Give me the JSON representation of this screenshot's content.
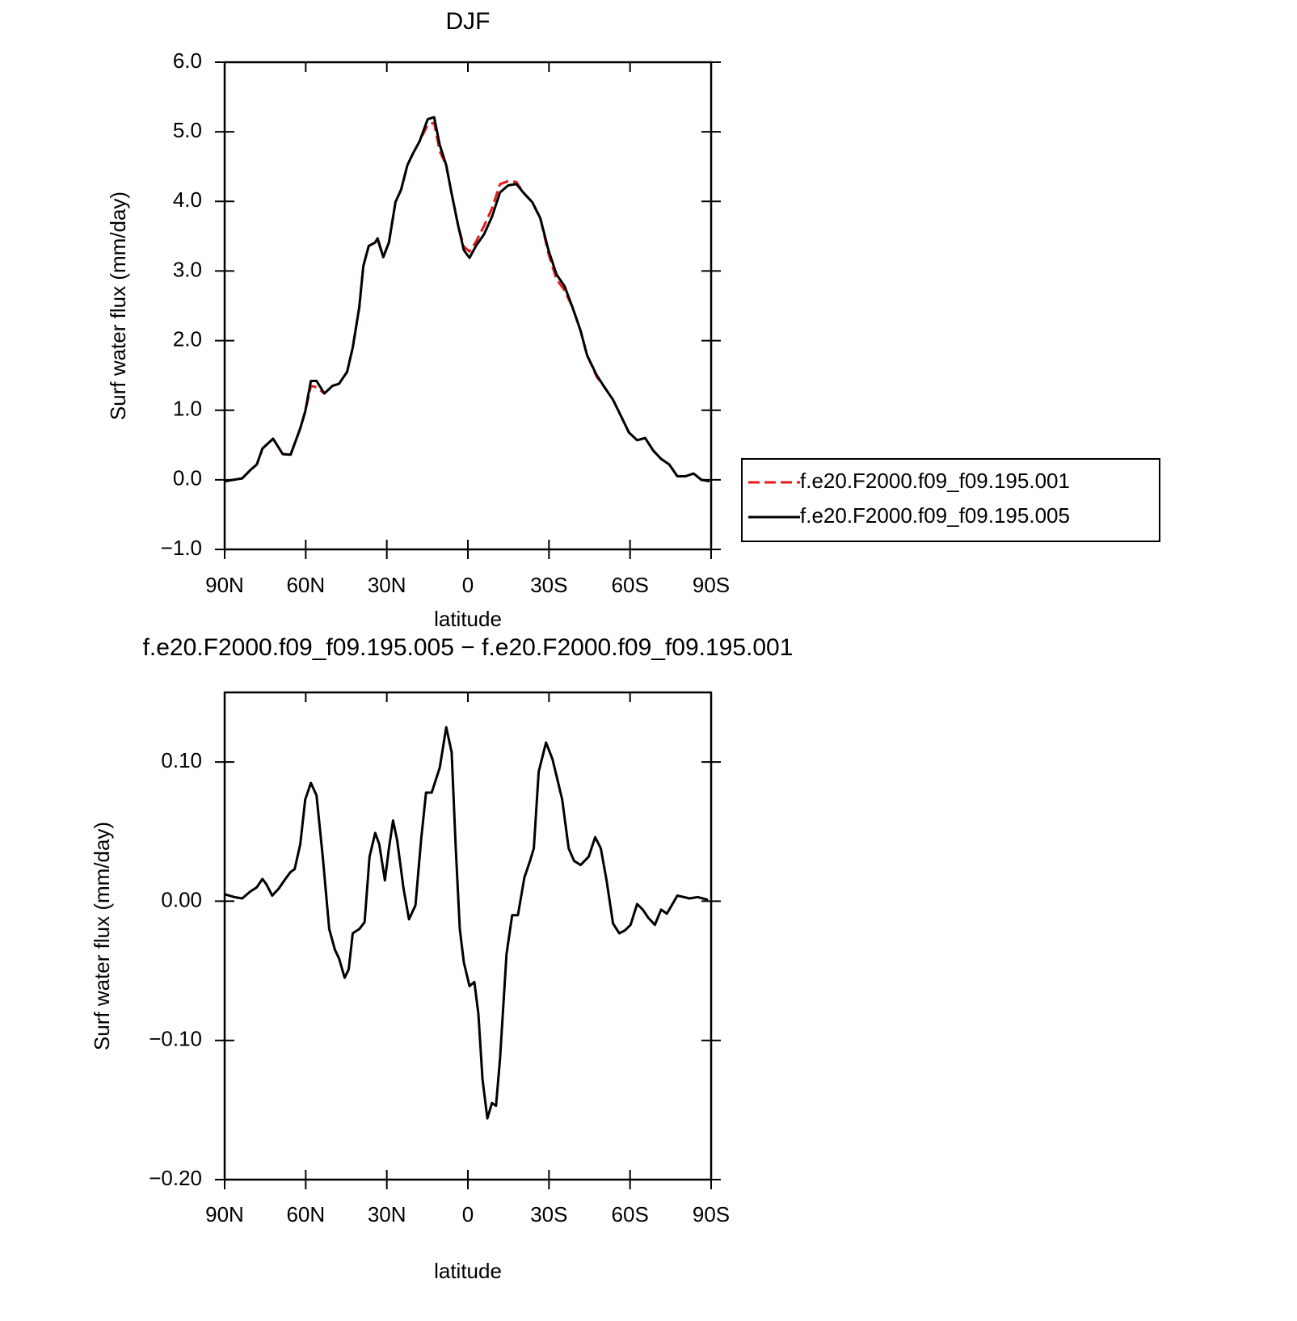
{
  "chart_data": [
    {
      "type": "line",
      "title": "DJF",
      "xlabel": "latitude",
      "ylabel": "Surf water flux (mm/day)",
      "x": [
        90.0,
        83.5,
        80.5,
        78.1,
        76.0,
        72.1,
        68.5,
        65.6,
        62.0,
        60.2,
        58.1,
        56.0,
        53.1,
        50.1,
        47.7,
        44.7,
        42.6,
        40.2,
        38.7,
        36.7,
        34.3,
        33.4,
        31.3,
        29.2,
        26.8,
        24.7,
        22.4,
        20.3,
        17.9,
        14.9,
        12.5,
        10.4,
        8.0,
        6.0,
        3.6,
        1.5,
        -0.6,
        -3.0,
        -6.0,
        -8.9,
        -11.9,
        -14.9,
        -17.9,
        -20.9,
        -23.8,
        -26.8,
        -29.8,
        -32.8,
        -35.8,
        -38.7,
        -41.7,
        -44.1,
        -47.7,
        -50.7,
        -53.7,
        -56.6,
        -59.6,
        -62.6,
        -65.6,
        -68.6,
        -71.5,
        -74.5,
        -77.5,
        -80.5,
        -83.5,
        -86.4,
        -89.4
      ],
      "series": [
        {
          "name": "f.e20.F2000.f09_f09.195.001",
          "color": "#e41a1c",
          "line_style": "dashed",
          "values": [
            -0.02,
            0.02,
            0.14,
            0.22,
            0.45,
            0.59,
            0.37,
            0.36,
            0.74,
            0.98,
            1.35,
            1.33,
            1.24,
            1.35,
            1.38,
            1.55,
            1.9,
            2.48,
            3.07,
            3.36,
            3.41,
            3.45,
            3.2,
            3.41,
            3.99,
            4.17,
            4.52,
            4.69,
            4.86,
            5.1,
            5.13,
            4.72,
            4.52,
            4.11,
            3.65,
            3.35,
            3.28,
            3.42,
            3.65,
            3.9,
            4.25,
            4.29,
            4.28,
            4.11,
            3.99,
            3.76,
            3.25,
            2.88,
            2.72,
            2.48,
            2.14,
            1.79,
            1.48,
            1.32,
            1.15,
            0.92,
            0.68,
            0.57,
            0.6,
            0.42,
            0.3,
            0.22,
            0.05,
            0.05,
            0.09,
            0.0,
            -0.02
          ]
        },
        {
          "name": "f.e20.F2000.f09_f09.195.005",
          "color": "#000000",
          "line_style": "solid",
          "values": [
            -0.02,
            0.02,
            0.14,
            0.22,
            0.45,
            0.59,
            0.37,
            0.36,
            0.74,
            0.98,
            1.42,
            1.42,
            1.24,
            1.35,
            1.38,
            1.55,
            1.9,
            2.48,
            3.07,
            3.36,
            3.41,
            3.47,
            3.2,
            3.41,
            3.99,
            4.17,
            4.52,
            4.69,
            4.86,
            5.18,
            5.21,
            4.81,
            4.52,
            4.11,
            3.65,
            3.3,
            3.19,
            3.36,
            3.53,
            3.78,
            4.13,
            4.23,
            4.25,
            4.11,
            3.99,
            3.76,
            3.3,
            2.95,
            2.78,
            2.48,
            2.14,
            1.79,
            1.5,
            1.32,
            1.15,
            0.92,
            0.68,
            0.57,
            0.6,
            0.42,
            0.3,
            0.22,
            0.05,
            0.05,
            0.09,
            0.0,
            -0.02
          ]
        }
      ],
      "xlim": [
        90,
        -90
      ],
      "xticks": [
        {
          "value": 90,
          "label": "90N"
        },
        {
          "value": 60,
          "label": "60N"
        },
        {
          "value": 30,
          "label": "30N"
        },
        0,
        {
          "value": -30,
          "label": "30S"
        },
        {
          "value": -60,
          "label": "60S"
        },
        {
          "value": -90,
          "label": "90S"
        }
      ],
      "ylim": [
        -1.0,
        6.0
      ],
      "yticks": [
        {
          "value": -1.0,
          "label": "−1.0"
        },
        {
          "value": 0.0,
          "label": "0.0"
        },
        {
          "value": 1.0,
          "label": "1.0"
        },
        {
          "value": 2.0,
          "label": "2.0"
        },
        {
          "value": 3.0,
          "label": "3.0"
        },
        {
          "value": 4.0,
          "label": "4.0"
        },
        {
          "value": 5.0,
          "label": "5.0"
        },
        {
          "value": 6.0,
          "label": "6.0"
        }
      ],
      "legend": "right"
    },
    {
      "type": "line",
      "title": "f.e20.F2000.f09_f09.195.005 − f.e20.F2000.f09_f09.195.001",
      "xlabel": "latitude",
      "ylabel": "Surf water flux (mm/day)",
      "x": [
        90.0,
        86.4,
        83.5,
        80.5,
        78.1,
        76.0,
        74.5,
        72.4,
        70.0,
        67.9,
        65.6,
        64.1,
        62.0,
        60.2,
        58.1,
        56.0,
        53.7,
        51.3,
        49.2,
        47.7,
        45.6,
        44.1,
        42.6,
        40.2,
        38.2,
        36.4,
        34.3,
        32.8,
        30.7,
        29.2,
        27.7,
        26.2,
        23.8,
        21.8,
        19.4,
        17.3,
        15.5,
        13.4,
        11.9,
        10.4,
        8.0,
        6.0,
        4.5,
        3.0,
        1.5,
        -0.6,
        -2.4,
        -3.9,
        -5.4,
        -7.2,
        -8.9,
        -10.4,
        -11.9,
        -14.3,
        -16.4,
        -18.5,
        -20.9,
        -23.0,
        -24.4,
        -26.2,
        -28.9,
        -31.3,
        -32.8,
        -34.9,
        -37.3,
        -39.3,
        -41.7,
        -44.7,
        -47.1,
        -49.2,
        -51.3,
        -53.7,
        -56.0,
        -58.1,
        -60.2,
        -62.6,
        -64.7,
        -66.8,
        -69.2,
        -71.5,
        -73.6,
        -75.4,
        -77.5,
        -79.9,
        -82.0,
        -85.0,
        -88.8
      ],
      "series": [
        {
          "color": "#000000",
          "line_style": "solid",
          "values": [
            0.005,
            0.003,
            0.002,
            0.007,
            0.01,
            0.016,
            0.012,
            0.004,
            0.009,
            0.015,
            0.021,
            0.023,
            0.041,
            0.073,
            0.085,
            0.076,
            0.032,
            -0.02,
            -0.035,
            -0.041,
            -0.055,
            -0.049,
            -0.023,
            -0.02,
            -0.015,
            0.032,
            0.049,
            0.041,
            0.015,
            0.038,
            0.058,
            0.044,
            0.009,
            -0.013,
            -0.003,
            0.044,
            0.078,
            0.078,
            0.087,
            0.096,
            0.125,
            0.107,
            0.038,
            -0.02,
            -0.044,
            -0.061,
            -0.058,
            -0.081,
            -0.128,
            -0.156,
            -0.145,
            -0.147,
            -0.113,
            -0.038,
            -0.01,
            -0.01,
            0.017,
            0.029,
            0.038,
            0.093,
            0.114,
            0.102,
            0.09,
            0.073,
            0.038,
            0.029,
            0.026,
            0.032,
            0.046,
            0.038,
            0.015,
            -0.016,
            -0.023,
            -0.021,
            -0.017,
            -0.002,
            -0.006,
            -0.012,
            -0.017,
            -0.006,
            -0.009,
            -0.003,
            0.004,
            0.003,
            0.002,
            0.003,
            0.001
          ]
        }
      ],
      "xlim": [
        90,
        -90
      ],
      "xticks": [
        {
          "value": 90,
          "label": "90N"
        },
        {
          "value": 60,
          "label": "60N"
        },
        {
          "value": 30,
          "label": "30N"
        },
        0,
        {
          "value": -30,
          "label": "30S"
        },
        {
          "value": -60,
          "label": "60S"
        },
        {
          "value": -90,
          "label": "90S"
        }
      ],
      "ylim": [
        -0.2,
        0.15
      ],
      "yticks": [
        {
          "value": -0.2,
          "label": "−0.20"
        },
        {
          "value": -0.1,
          "label": "−0.10"
        },
        {
          "value": 0.0,
          "label": "0.00"
        },
        {
          "value": 0.1,
          "label": "0.10"
        }
      ]
    }
  ]
}
